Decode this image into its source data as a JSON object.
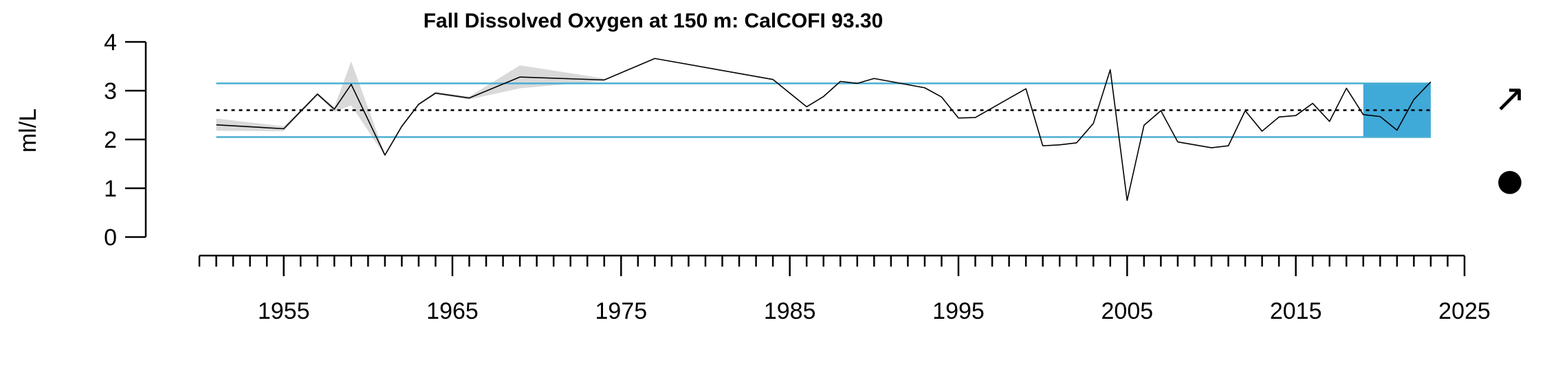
{
  "chart_data": {
    "type": "line",
    "title": "Fall Dissolved Oxygen at 150 m: CalCOFI 93.30",
    "ylabel": "ml/L",
    "xlabel": "",
    "xlim": [
      1950,
      2025
    ],
    "ylim": [
      0,
      4
    ],
    "x_ticks": [
      1955,
      1965,
      1975,
      1985,
      1995,
      2005,
      2015,
      2025
    ],
    "y_ticks": [
      0,
      1,
      2,
      3,
      4
    ],
    "series": [
      {
        "x": [
          1951,
          1955,
          1957,
          1958,
          1959,
          1961,
          1962,
          1963,
          1964,
          1966,
          1969,
          1974,
          1977,
          1984,
          1986,
          1987,
          1988,
          1989,
          1990,
          1993,
          1994,
          1995,
          1996,
          1999,
          2000,
          2001,
          2002,
          2003,
          2004,
          2005,
          2006,
          2007,
          2008,
          2010,
          2011,
          2012,
          2013,
          2014,
          2015,
          2016,
          2017,
          2018,
          2019,
          2020,
          2021,
          2022,
          2023
        ],
        "values": [
          2.3,
          2.22,
          2.93,
          2.62,
          3.13,
          1.68,
          2.27,
          2.72,
          2.95,
          2.85,
          3.28,
          3.22,
          3.66,
          3.23,
          2.67,
          2.88,
          3.19,
          3.15,
          3.25,
          3.06,
          2.87,
          2.44,
          2.45,
          3.04,
          1.87,
          1.89,
          1.93,
          2.33,
          3.43,
          0.75,
          2.29,
          2.59,
          1.95,
          1.83,
          1.87,
          2.59,
          2.17,
          2.46,
          2.49,
          2.74,
          2.37,
          3.05,
          2.51,
          2.47,
          2.19,
          2.82,
          3.18
        ]
      }
    ],
    "uncertainty_band": {
      "x": [
        1951,
        1955,
        1957,
        1958,
        1959,
        1961,
        1962,
        1963,
        1964,
        1966,
        1969,
        1974
      ],
      "lower": [
        2.18,
        2.17,
        2.9,
        2.57,
        2.7,
        1.66,
        2.25,
        2.7,
        2.93,
        2.82,
        3.05,
        3.2
      ],
      "upper": [
        2.43,
        2.27,
        2.96,
        2.67,
        3.6,
        1.7,
        2.3,
        2.75,
        2.98,
        2.88,
        3.52,
        3.25
      ]
    },
    "reference_lines": {
      "mean": 2.6,
      "upper_sd": 3.15,
      "lower_sd": 2.05
    },
    "highlight_period": {
      "x_start": 2019,
      "x_end": 2023
    },
    "trend_symbol": "↗",
    "status_symbol": "●",
    "colors": {
      "line": "#000000",
      "band": "#d9d9d9",
      "sd_lines": "#4aaed3",
      "highlight": "#3fa9d8",
      "mean_line": "#000000"
    }
  }
}
